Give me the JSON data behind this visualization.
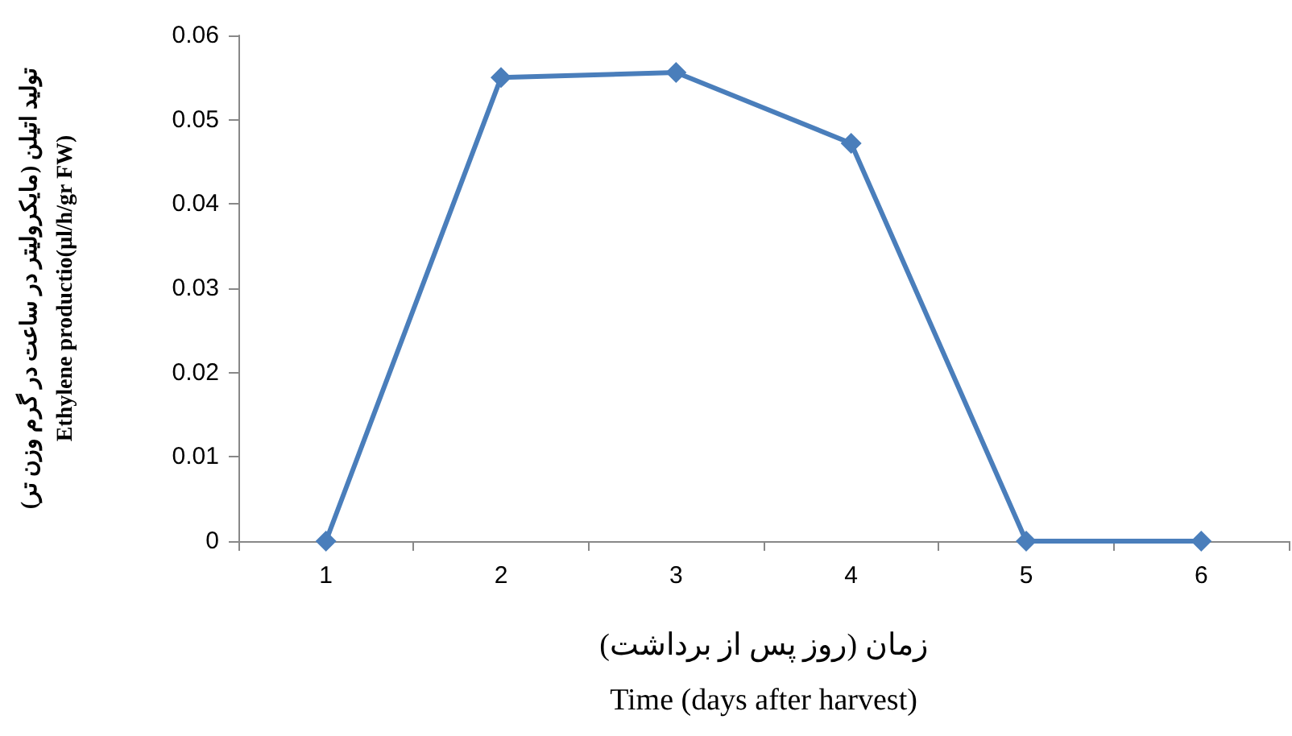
{
  "chart_data": {
    "type": "line",
    "xlabel": "زمان (روز پس از برداشت)\nTime (days after harvest)",
    "ylabel": "تولید اتیلن (مایکرولیتر در ساعت در گرم وزن تر)\nEthylene productio(µl/h/gr FW)",
    "categories": [
      "1",
      "2",
      "3",
      "4",
      "5",
      "6"
    ],
    "series": [
      {
        "color": "#4a7ebb",
        "values": [
          0,
          0.055,
          0.0556,
          0.0472,
          0,
          0
        ]
      }
    ],
    "ylim": [
      0,
      0.06
    ],
    "yticks": [
      0,
      0.01,
      0.02,
      0.03,
      0.04,
      0.05,
      0.06
    ],
    "marker": "diamond",
    "line_style": "solid"
  }
}
